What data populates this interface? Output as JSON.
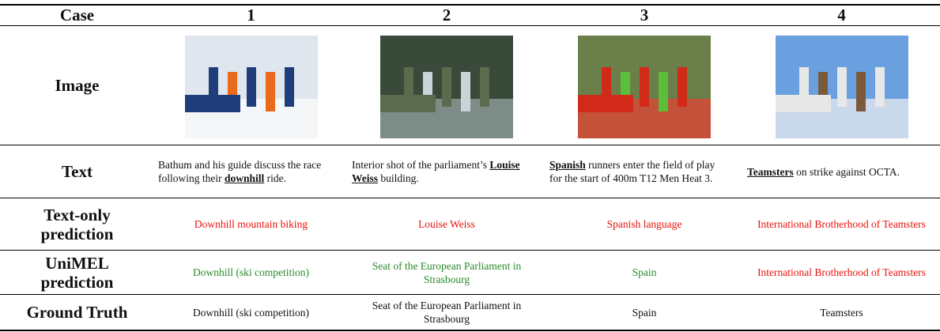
{
  "table": {
    "header": [
      "Case",
      "1",
      "2",
      "3",
      "4"
    ],
    "image_row": {
      "label": "Image"
    },
    "text_row": {
      "label": "Text",
      "cells": [
        [
          {
            "t": "Bathum and his guide discuss the race following their "
          },
          {
            "m": "downhill"
          },
          {
            "t": " ride."
          }
        ],
        [
          {
            "t": "Interior shot of the parliament’s "
          },
          {
            "m": "Louise Weiss"
          },
          {
            "t": " building."
          }
        ],
        [
          {
            "m": "Spanish"
          },
          {
            "t": " runners enter the field of play for the start of 400m T12 Men Heat 3."
          }
        ],
        [
          {
            "m": "Teamsters"
          },
          {
            "t": " on strike against OCTA."
          }
        ]
      ]
    },
    "rows": [
      {
        "label": "Text-only prediction",
        "cells": [
          {
            "text": "Downhill mountain biking",
            "color": "#e8120c"
          },
          {
            "text": "Louise Weiss",
            "color": "#e8120c"
          },
          {
            "text": "Spanish language",
            "color": "#e8120c"
          },
          {
            "text": "International Brotherhood of Teamsters",
            "color": "#e8120c"
          }
        ]
      },
      {
        "label": "UniMEL prediction",
        "cells": [
          {
            "text": "Downhill (ski competition)",
            "color": "#2a8a2a"
          },
          {
            "text": "Seat of the European Parliament in Strasbourg",
            "color": "#2a8a2a"
          },
          {
            "text": "Spain",
            "color": "#2a8a2a"
          },
          {
            "text": "International Brotherhood of Teamsters",
            "color": "#e8120c"
          }
        ]
      },
      {
        "label": "Ground Truth",
        "cells": [
          {
            "text": "Downhill (ski competition)",
            "color": "#111111"
          },
          {
            "text": "Seat of the European Parliament in Strasbourg",
            "color": "#111111"
          },
          {
            "text": "Spain",
            "color": "#111111"
          },
          {
            "text": "Teamsters",
            "color": "#111111"
          }
        ]
      }
    ]
  }
}
